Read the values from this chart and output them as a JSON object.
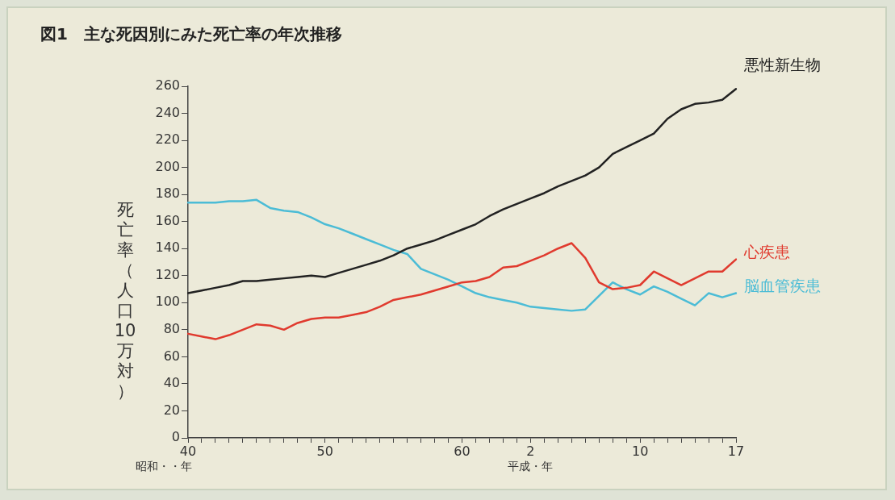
{
  "chart_data": {
    "type": "line",
    "title": "図1　主な死因別にみた死亡率の年次推移",
    "ylabel": "死亡率（人口10万対）",
    "categories": [
      "40",
      null,
      null,
      null,
      null,
      null,
      null,
      null,
      null,
      null,
      "50",
      null,
      null,
      null,
      null,
      null,
      null,
      null,
      null,
      null,
      "60",
      null,
      null,
      null,
      null,
      "2",
      null,
      null,
      null,
      null,
      null,
      null,
      null,
      "10",
      null,
      null,
      null,
      null,
      null,
      null,
      "17"
    ],
    "series": [
      {
        "name": "悪性新生物",
        "color": "#222222",
        "values": [
          107,
          109,
          111,
          113,
          116,
          116,
          117,
          118,
          119,
          120,
          119,
          122,
          125,
          128,
          131,
          135,
          140,
          143,
          146,
          150,
          154,
          158,
          164,
          169,
          173,
          177,
          181,
          186,
          190,
          194,
          200,
          210,
          215,
          220,
          225,
          236,
          243,
          247,
          248,
          250,
          258
        ]
      },
      {
        "name": "心疾患",
        "color": "#e03a2e",
        "values": [
          77,
          75,
          73,
          76,
          80,
          84,
          83,
          80,
          85,
          88,
          89,
          89,
          91,
          93,
          97,
          102,
          104,
          106,
          109,
          112,
          115,
          116,
          119,
          126,
          127,
          131,
          135,
          140,
          144,
          133,
          115,
          110,
          111,
          113,
          123,
          118,
          113,
          118,
          123,
          123,
          132
        ]
      },
      {
        "name": "脳血管疾患",
        "color": "#4bbcd6",
        "values": [
          174,
          174,
          174,
          175,
          175,
          176,
          170,
          168,
          167,
          163,
          158,
          155,
          151,
          147,
          143,
          139,
          136,
          125,
          121,
          117,
          112,
          107,
          104,
          102,
          100,
          97,
          96,
          95,
          94,
          95,
          105,
          115,
          110,
          106,
          112,
          108,
          103,
          98,
          107,
          104,
          107
        ]
      }
    ],
    "ylim": [
      0,
      260
    ],
    "yticks": [
      0,
      20,
      40,
      60,
      80,
      100,
      120,
      140,
      160,
      180,
      200,
      220,
      240,
      260
    ],
    "annotations": [
      "昭和・・年",
      "平成・年"
    ],
    "grid": false,
    "legend": false,
    "marker": "none"
  }
}
